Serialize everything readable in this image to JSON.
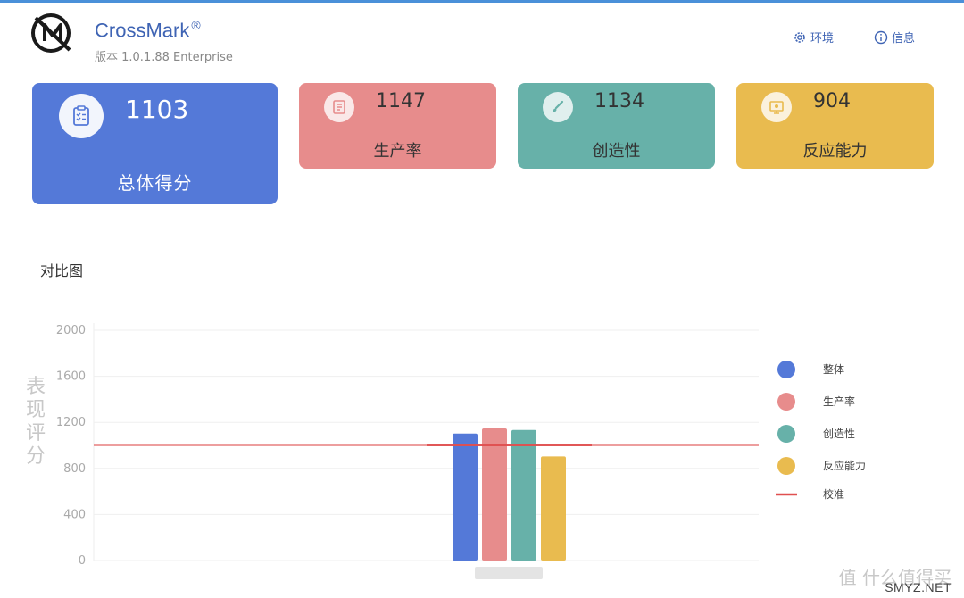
{
  "header": {
    "app_name": "CrossMark",
    "registered_mark": "®",
    "version": "版本 1.0.1.88 Enterprise",
    "env_label": "环境",
    "info_label": "信息"
  },
  "scores": {
    "overall": {
      "value": "1103",
      "label": "总体得分",
      "color": "#5479d8"
    },
    "productivity": {
      "value": "1147",
      "label": "生产率",
      "color": "#e78c8c"
    },
    "creativity": {
      "value": "1134",
      "label": "创造性",
      "color": "#67b1a9"
    },
    "responsiveness": {
      "value": "904",
      "label": "反应能力",
      "color": "#e9bb4f"
    }
  },
  "comparison": {
    "title": "对比图"
  },
  "chart_data": {
    "type": "bar",
    "ylabel": "表现评分",
    "ylim": [
      0,
      2000
    ],
    "yticks": [
      0,
      400,
      800,
      1200,
      1600,
      2000
    ],
    "grid": true,
    "legend_position": "right",
    "series": [
      {
        "name": "整体",
        "value": 1103,
        "color": "#5479d8"
      },
      {
        "name": "生产率",
        "value": 1147,
        "color": "#e78c8c"
      },
      {
        "name": "创造性",
        "value": 1134,
        "color": "#67b1a9"
      },
      {
        "name": "反应能力",
        "value": 904,
        "color": "#e9bb4f"
      }
    ],
    "reference": {
      "name": "校准",
      "value": 1000,
      "color": "#e05050"
    }
  },
  "watermark": {
    "text": "值 什么值得买",
    "url": "SMYZ.NET"
  }
}
